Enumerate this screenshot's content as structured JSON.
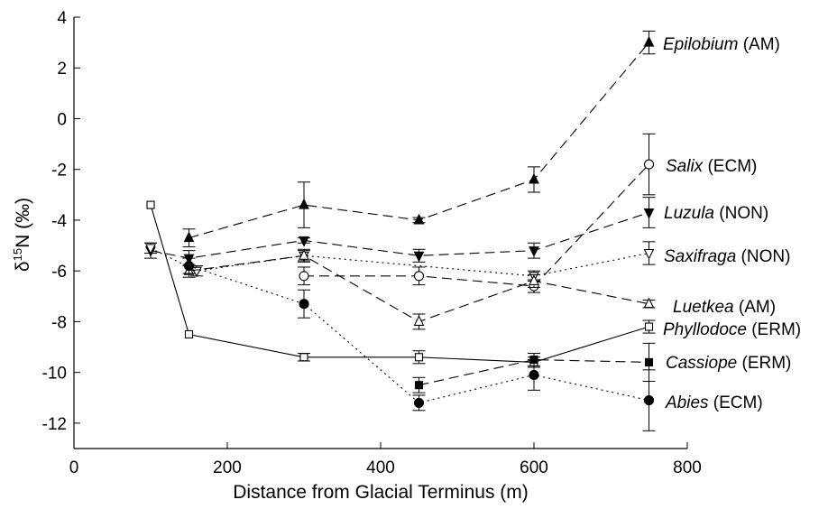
{
  "chart_data": {
    "type": "line",
    "xlabel": "Distance from Glacial Terminus (m)",
    "ylabel": "δ15N (‰)",
    "ylabel_parts": {
      "delta": "δ",
      "superscript": "15",
      "main": "N (‰)"
    },
    "xlim": [
      0,
      800
    ],
    "ylim": [
      -13,
      4
    ],
    "x_ticks": [
      0,
      200,
      400,
      600,
      800
    ],
    "y_ticks": [
      4,
      2,
      0,
      -2,
      -4,
      -6,
      -8,
      -10,
      -12
    ],
    "grid": false,
    "legend": "inline labels at line ends (right)",
    "series": [
      {
        "species": "Epilobium",
        "group": " (AM)",
        "marker": "triangle-up",
        "filled": true,
        "linestyle": "dashed",
        "x": [
          150,
          300,
          450,
          600,
          750
        ],
        "y": [
          -4.7,
          -3.4,
          -4.0,
          -2.4,
          3.0
        ],
        "err": [
          0.35,
          0.9,
          0.1,
          0.5,
          0.45
        ]
      },
      {
        "species": "Salix",
        "group": " (ECM)",
        "marker": "circle",
        "filled": false,
        "linestyle": "dashed",
        "x": [
          300,
          450,
          600,
          750
        ],
        "y": [
          -6.2,
          -6.2,
          -6.6,
          -1.8
        ],
        "err": [
          0.35,
          0.35,
          0.25,
          1.2
        ]
      },
      {
        "species": "Luzula",
        "group": " (NON)",
        "marker": "triangle-down",
        "filled": true,
        "linestyle": "dashed",
        "x": [
          100,
          150,
          300,
          450,
          600,
          750
        ],
        "y": [
          -5.2,
          -5.5,
          -4.8,
          -5.4,
          -5.2,
          -3.7
        ],
        "err": [
          0.3,
          0.3,
          0.1,
          0.25,
          0.3,
          0.6
        ]
      },
      {
        "species": "Saxifraga",
        "group": " (NON)",
        "marker": "triangle-down",
        "filled": false,
        "linestyle": "dotted",
        "x": [
          100,
          160,
          300,
          600,
          750
        ],
        "y": [
          -5.1,
          -6.0,
          -5.4,
          -6.2,
          -5.3
        ],
        "err": [
          0.2,
          0.2,
          0.2,
          0.2,
          0.45
        ]
      },
      {
        "species": "Luetkea",
        "group": " (AM)",
        "marker": "triangle-up",
        "filled": false,
        "linestyle": "dashed",
        "x": [
          150,
          300,
          450,
          600,
          750
        ],
        "y": [
          -6.0,
          -5.4,
          -8.0,
          -6.4,
          -7.3
        ],
        "err": [
          0.25,
          0.25,
          0.3,
          0.25,
          0.15
        ]
      },
      {
        "species": "Phyllodoce",
        "group": " (ERM)",
        "marker": "square",
        "filled": false,
        "linestyle": "solid",
        "x": [
          100,
          150,
          300,
          450,
          600,
          750
        ],
        "y": [
          -3.4,
          -8.5,
          -9.4,
          -9.4,
          -9.6,
          -8.2
        ],
        "err": [
          0,
          0,
          0.15,
          0.25,
          0.2,
          0.25
        ]
      },
      {
        "species": "Cassiope",
        "group": " (ERM)",
        "marker": "square",
        "filled": true,
        "linestyle": "dashed",
        "x": [
          450,
          600,
          750
        ],
        "y": [
          -10.5,
          -9.5,
          -9.6
        ],
        "err": [
          0.3,
          0.25,
          0.75
        ]
      },
      {
        "species": "Abies",
        "group": " (ECM)",
        "marker": "circle",
        "filled": true,
        "linestyle": "dotted",
        "x": [
          150,
          300,
          450,
          600,
          750
        ],
        "y": [
          -5.8,
          -7.3,
          -11.2,
          -10.1,
          -11.1
        ],
        "err": [
          0.3,
          0.55,
          0.3,
          0.6,
          1.2
        ]
      }
    ]
  }
}
